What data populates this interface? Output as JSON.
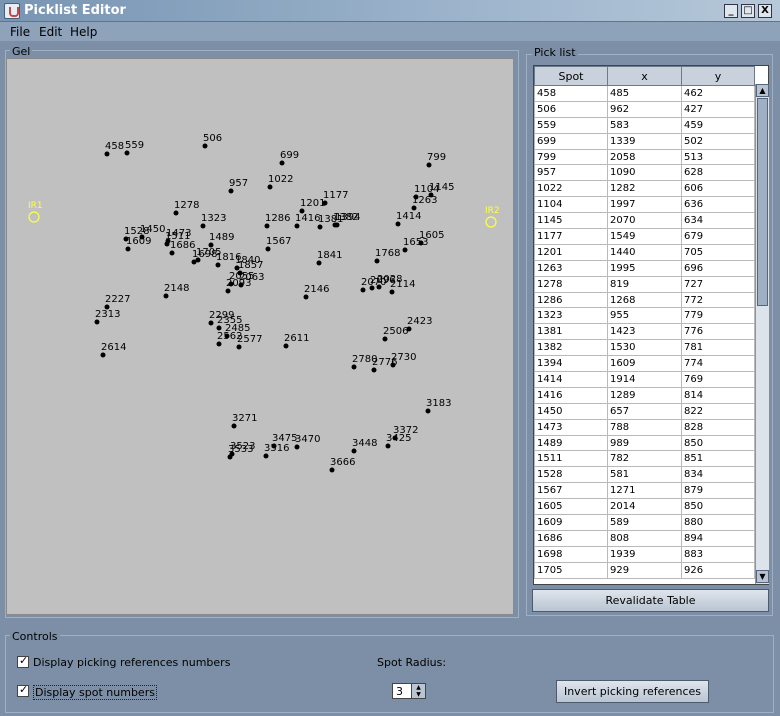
{
  "window": {
    "title": "Picklist Editor",
    "min": "_",
    "max": "□",
    "close": "X"
  },
  "menu": [
    "File",
    "Edit",
    "Help"
  ],
  "gel": {
    "legend": "Gel",
    "refs": [
      {
        "label": "IR1",
        "x": 33,
        "y": 216
      },
      {
        "label": "IR2",
        "x": 490,
        "y": 221
      }
    ],
    "spots": [
      [
        "458",
        106,
        153
      ],
      [
        "559",
        126,
        152
      ],
      [
        "506",
        204,
        145
      ],
      [
        "699",
        281,
        162
      ],
      [
        "799",
        428,
        164
      ],
      [
        "957",
        230,
        190
      ],
      [
        "1022",
        269,
        186
      ],
      [
        "1104",
        415,
        196
      ],
      [
        "1145",
        430,
        194
      ],
      [
        "1177",
        324,
        202
      ],
      [
        "1201",
        301,
        210
      ],
      [
        "1263",
        413,
        207
      ],
      [
        "1278",
        175,
        212
      ],
      [
        "1323",
        202,
        225
      ],
      [
        "1286",
        266,
        225
      ],
      [
        "1416",
        296,
        225
      ],
      [
        "1381",
        319,
        226
      ],
      [
        "1382",
        334,
        224
      ],
      [
        "1394",
        336,
        224
      ],
      [
        "1414",
        397,
        223
      ],
      [
        "1450",
        141,
        236
      ],
      [
        "1473",
        167,
        240
      ],
      [
        "1528",
        125,
        238
      ],
      [
        "1489",
        210,
        244
      ],
      [
        "1511",
        166,
        243
      ],
      [
        "1567",
        267,
        248
      ],
      [
        "1605",
        420,
        242
      ],
      [
        "1609",
        127,
        248
      ],
      [
        "1653",
        404,
        249
      ],
      [
        "1686",
        171,
        252
      ],
      [
        "1698",
        193,
        261
      ],
      [
        "1705",
        197,
        259
      ],
      [
        "1768",
        376,
        260
      ],
      [
        "1816",
        217,
        264
      ],
      [
        "1841",
        318,
        262
      ],
      [
        "1840",
        236,
        267
      ],
      [
        "1857",
        239,
        272
      ],
      [
        "2055",
        230,
        283
      ],
      [
        "2063",
        240,
        284
      ],
      [
        "2028",
        378,
        286
      ],
      [
        "2093",
        227,
        290
      ],
      [
        "2114",
        391,
        291
      ],
      [
        "2070",
        362,
        289
      ],
      [
        "2096",
        371,
        287
      ],
      [
        "2146",
        305,
        296
      ],
      [
        "2148",
        165,
        295
      ],
      [
        "2227",
        106,
        306
      ],
      [
        "2313",
        96,
        321
      ],
      [
        "2299",
        210,
        322
      ],
      [
        "2355",
        218,
        327
      ],
      [
        "2423",
        408,
        328
      ],
      [
        "2485",
        226,
        335
      ],
      [
        "2506",
        384,
        338
      ],
      [
        "2562",
        218,
        343
      ],
      [
        "2577",
        238,
        346
      ],
      [
        "2611",
        285,
        345
      ],
      [
        "2614",
        102,
        354
      ],
      [
        "2730",
        392,
        364
      ],
      [
        "2776",
        373,
        369
      ],
      [
        "2780",
        353,
        366
      ],
      [
        "3183",
        427,
        410
      ],
      [
        "3271",
        233,
        425
      ],
      [
        "3372",
        394,
        437
      ],
      [
        "3425",
        387,
        445
      ],
      [
        "3448",
        353,
        450
      ],
      [
        "3470",
        296,
        446
      ],
      [
        "3475",
        273,
        445
      ],
      [
        "3516",
        265,
        455
      ],
      [
        "3523",
        231,
        453
      ],
      [
        "3533",
        229,
        456
      ],
      [
        "3666",
        331,
        469
      ]
    ]
  },
  "picklist": {
    "legend": "Pick list",
    "columns": [
      "Spot",
      "x",
      "y"
    ],
    "rows": [
      [
        "458",
        "485",
        "462"
      ],
      [
        "506",
        "962",
        "427"
      ],
      [
        "559",
        "583",
        "459"
      ],
      [
        "699",
        "1339",
        "502"
      ],
      [
        "799",
        "2058",
        "513"
      ],
      [
        "957",
        "1090",
        "628"
      ],
      [
        "1022",
        "1282",
        "606"
      ],
      [
        "1104",
        "1997",
        "636"
      ],
      [
        "1145",
        "2070",
        "634"
      ],
      [
        "1177",
        "1549",
        "679"
      ],
      [
        "1201",
        "1440",
        "705"
      ],
      [
        "1263",
        "1995",
        "696"
      ],
      [
        "1278",
        "819",
        "727"
      ],
      [
        "1286",
        "1268",
        "772"
      ],
      [
        "1323",
        "955",
        "779"
      ],
      [
        "1381",
        "1423",
        "776"
      ],
      [
        "1382",
        "1530",
        "781"
      ],
      [
        "1394",
        "1609",
        "774"
      ],
      [
        "1414",
        "1914",
        "769"
      ],
      [
        "1416",
        "1289",
        "814"
      ],
      [
        "1450",
        "657",
        "822"
      ],
      [
        "1473",
        "788",
        "828"
      ],
      [
        "1489",
        "989",
        "850"
      ],
      [
        "1511",
        "782",
        "851"
      ],
      [
        "1528",
        "581",
        "834"
      ],
      [
        "1567",
        "1271",
        "879"
      ],
      [
        "1605",
        "2014",
        "850"
      ],
      [
        "1609",
        "589",
        "880"
      ],
      [
        "1686",
        "808",
        "894"
      ],
      [
        "1698",
        "1939",
        "883"
      ],
      [
        "1705",
        "929",
        "926"
      ]
    ],
    "revalidate_label": "Revalidate Table"
  },
  "controls": {
    "legend": "Controls",
    "display_refs_label": "Display picking references numbers",
    "display_spots_label": "Display spot numbers",
    "spot_radius_label": "Spot Radius:",
    "spot_radius_value": "3",
    "invert_label": "Invert picking references"
  },
  "colors": {
    "ref_color": "#ffff44",
    "spot_color": "#000000",
    "gel_bg": "#c0c0c0"
  }
}
